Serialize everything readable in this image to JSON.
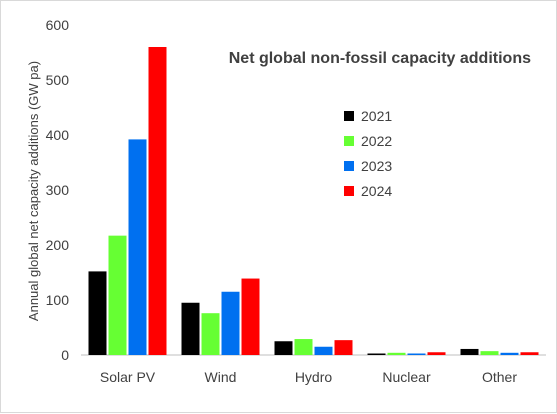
{
  "chart_data": {
    "type": "bar",
    "title": "Net global non-fossil capacity additions",
    "ylabel": "Annual global net capacity additions (GW pa)",
    "xlabel": "",
    "categories": [
      "Solar PV",
      "Wind",
      "Hydro",
      "Nuclear",
      "Other"
    ],
    "series": [
      {
        "name": "2021",
        "color": "#000000",
        "values": [
          152,
          95,
          25,
          0,
          11
        ]
      },
      {
        "name": "2022",
        "color": "#66ff33",
        "values": [
          217,
          76,
          29,
          4,
          7
        ]
      },
      {
        "name": "2023",
        "color": "#0070f0",
        "values": [
          392,
          115,
          15,
          0,
          4
        ]
      },
      {
        "name": "2024",
        "color": "#ff0000",
        "values": [
          560,
          139,
          27,
          5,
          5
        ]
      }
    ],
    "ylim": [
      0,
      600
    ],
    "yticks": [
      "0",
      "100",
      "200",
      "300",
      "400",
      "500",
      "600"
    ],
    "grid": false,
    "legend_position": "right-center"
  }
}
